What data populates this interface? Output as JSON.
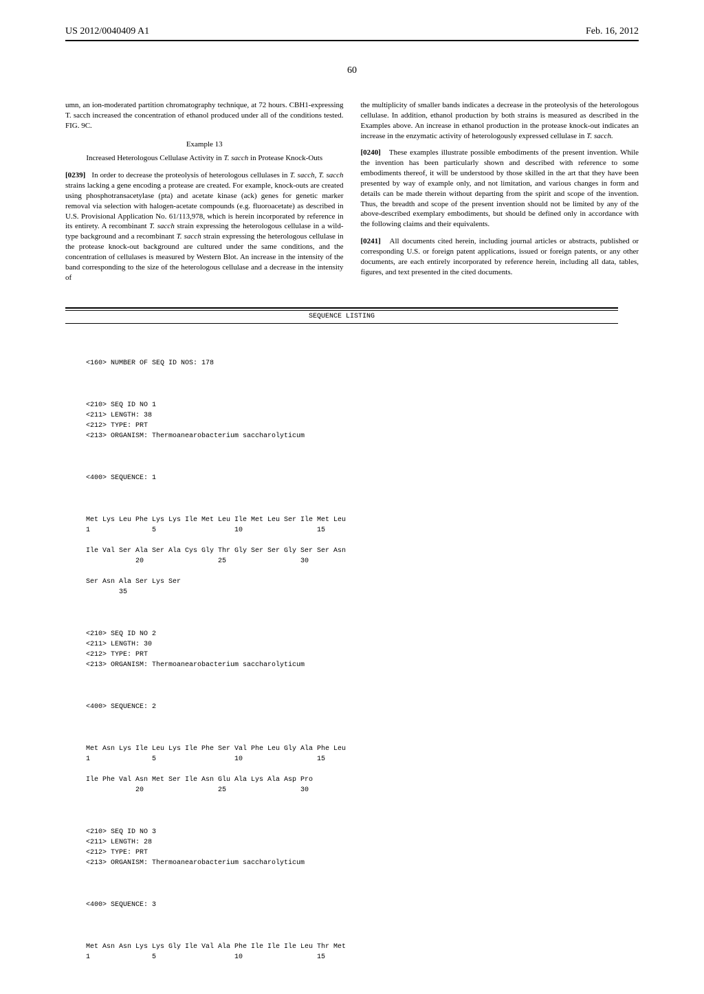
{
  "header": {
    "publication_number": "US 2012/0040409 A1",
    "publication_date": "Feb. 16, 2012"
  },
  "page_number": "60",
  "left_column": {
    "para1": "umn, an ion-moderated partition chromatography technique, at 72 hours. CBH1-expressing T. sacch increased the concentration of ethanol produced under all of the conditions tested. FIG. 9C.",
    "example_heading": "Example 13",
    "example_title": "Increased Heterologous Cellulase Activity in T. sacch in Protease Knock-Outs",
    "para_0239_num": "[0239]",
    "para_0239_text": "In order to decrease the proteolysis of heterologous cellulases in T. sacch, T. sacch strains lacking a gene encoding a protease are created. For example, knock-outs are created using phosphotransacetylase (pta) and acetate kinase (ack) genes for genetic marker removal via selection with halogen-acetate compounds (e.g. fluoroacetate) as described in U.S. Provisional Application No. 61/113,978, which is herein incorporated by reference in its entirety. A recombinant T. sacch strain expressing the heterologous cellulase in a wild-type background and a recombinant T. sacch strain expressing the heterologous cellulase in the protease knock-out background are cultured under the same conditions, and the concentration of cellulases is measured by Western Blot. An increase in the intensity of the band corresponding to the size of the heterologous cellulase and a decrease in the intensity of"
  },
  "right_column": {
    "para1": "the multiplicity of smaller bands indicates a decrease in the proteolysis of the heterologous cellulase. In addition, ethanol production by both strains is measured as described in the Examples above. An increase in ethanol production in the protease knock-out indicates an increase in the enzymatic activity of heterologously expressed cellulase in T. sacch.",
    "para_0240_num": "[0240]",
    "para_0240_text": "These examples illustrate possible embodiments of the present invention. While the invention has been particularly shown and described with reference to some embodiments thereof, it will be understood by those skilled in the art that they have been presented by way of example only, and not limitation, and various changes in form and details can be made therein without departing from the spirit and scope of the invention. Thus, the breadth and scope of the present invention should not be limited by any of the above-described exemplary embodiments, but should be defined only in accordance with the following claims and their equivalents.",
    "para_0241_num": "[0241]",
    "para_0241_text": "All documents cited herein, including journal articles or abstracts, published or corresponding U.S. or foreign patent applications, issued or foreign patents, or any other documents, are each entirely incorporated by reference herein, including all data, tables, figures, and text presented in the cited documents."
  },
  "sequence_listing": {
    "title": "SEQUENCE LISTING",
    "num_seqs": "<160> NUMBER OF SEQ ID NOS: 178",
    "seq1_meta": "<210> SEQ ID NO 1\n<211> LENGTH: 38\n<212> TYPE: PRT\n<213> ORGANISM: Thermoanearobacterium saccharolyticum",
    "seq1_label": "<400> SEQUENCE: 1",
    "seq1_data": "Met Lys Leu Phe Lys Lys Ile Met Leu Ile Met Leu Ser Ile Met Leu\n1               5                   10                  15\n\nIle Val Ser Ala Ser Ala Cys Gly Thr Gly Ser Ser Gly Ser Ser Asn\n            20                  25                  30\n\nSer Asn Ala Ser Lys Ser\n        35",
    "seq2_meta": "<210> SEQ ID NO 2\n<211> LENGTH: 30\n<212> TYPE: PRT\n<213> ORGANISM: Thermoanearobacterium saccharolyticum",
    "seq2_label": "<400> SEQUENCE: 2",
    "seq2_data": "Met Asn Lys Ile Leu Lys Ile Phe Ser Val Phe Leu Gly Ala Phe Leu\n1               5                   10                  15\n\nIle Phe Val Asn Met Ser Ile Asn Glu Ala Lys Ala Asp Pro\n            20                  25                  30",
    "seq3_meta": "<210> SEQ ID NO 3\n<211> LENGTH: 28\n<212> TYPE: PRT\n<213> ORGANISM: Thermoanearobacterium saccharolyticum",
    "seq3_label": "<400> SEQUENCE: 3",
    "seq3_data": "Met Asn Asn Lys Lys Gly Ile Val Ala Phe Ile Ile Ile Leu Thr Met\n1               5                   10                  15"
  }
}
